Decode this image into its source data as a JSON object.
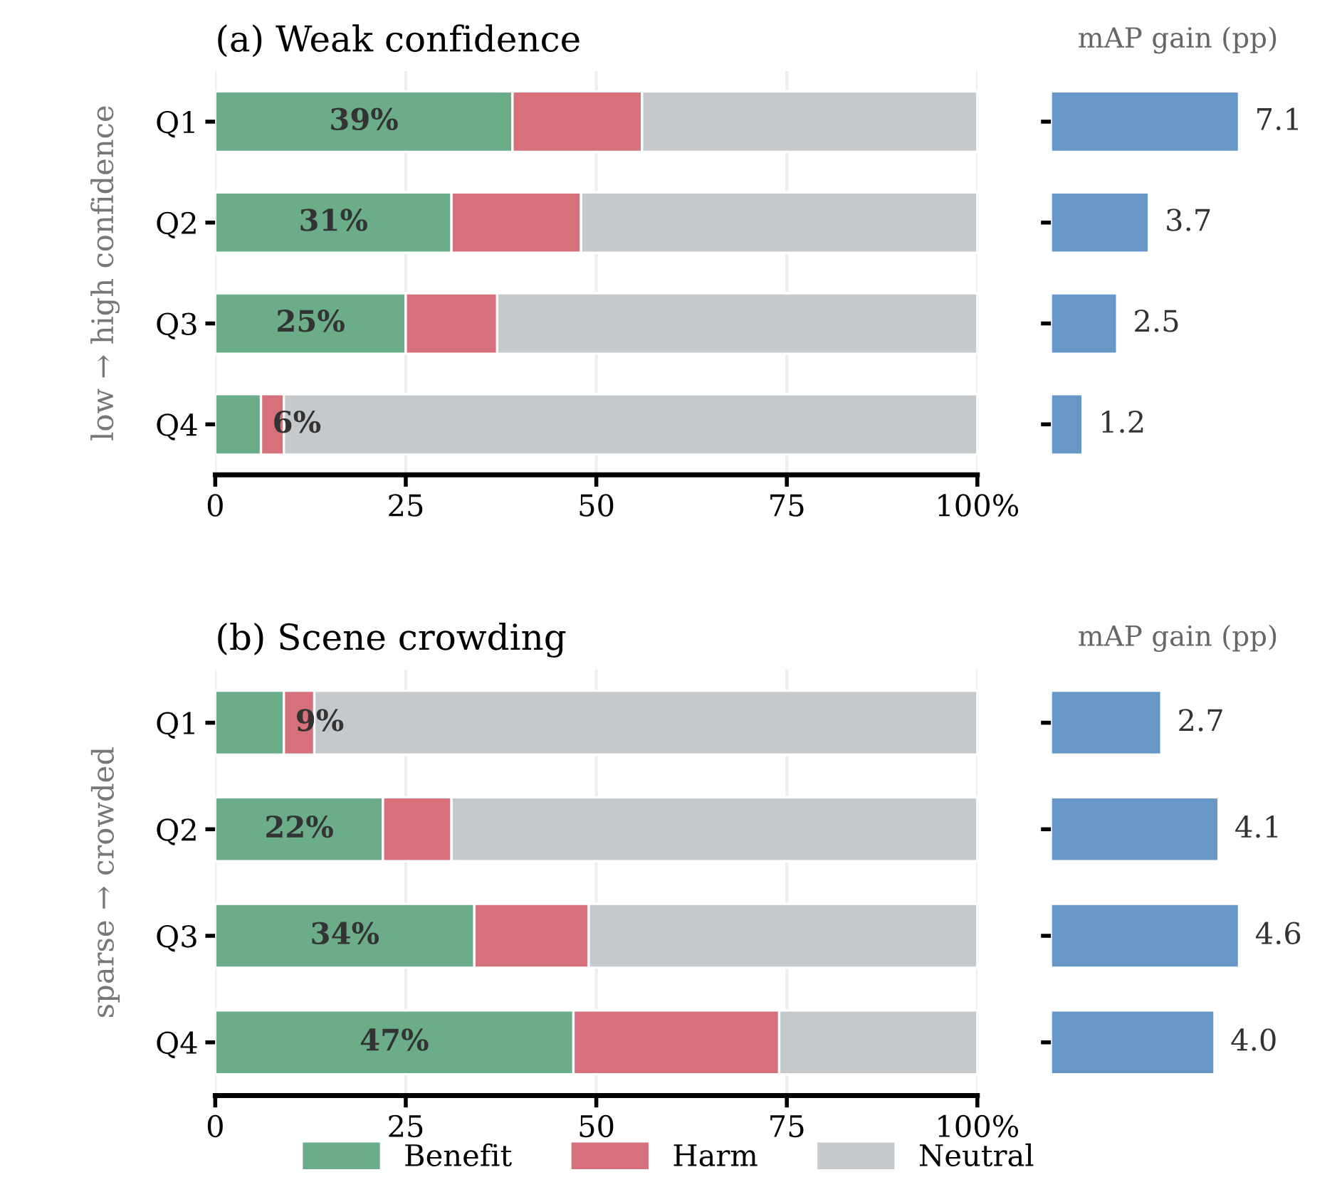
{
  "chart_data": [
    {
      "type": "bar",
      "orientation": "horizontal",
      "stacked": true,
      "title": "(a) Weak confidence",
      "ylabel": "low → high confidence",
      "categories": [
        "Q1",
        "Q2",
        "Q3",
        "Q4"
      ],
      "series": [
        {
          "name": "Benefit",
          "color": "#6aad88",
          "values": [
            39,
            31,
            25,
            6
          ],
          "value_labels": [
            "39%",
            "31%",
            "25%",
            "6%"
          ]
        },
        {
          "name": "Harm",
          "color": "#d6707a",
          "values": [
            17,
            17,
            12,
            3
          ]
        },
        {
          "name": "Neutral",
          "color": "#c6c9cc",
          "values": [
            44,
            52,
            63,
            91
          ]
        }
      ],
      "xlim": [
        0,
        100
      ],
      "xticks": [
        0,
        25,
        50,
        75,
        {
          "value": 100,
          "label": "100%"
        }
      ],
      "grid": "x",
      "legend": "bottom"
    },
    {
      "type": "bar",
      "orientation": "horizontal",
      "title": "mAP gain (pp)",
      "categories": [
        null,
        null,
        null,
        null
      ],
      "values": [
        7.1,
        3.7,
        2.5,
        1.2
      ],
      "value_labels": [
        "7.1",
        "3.7",
        "2.5",
        "1.2"
      ],
      "color": "#6797c6"
    },
    {
      "type": "bar",
      "orientation": "horizontal",
      "stacked": true,
      "title": "(b) Scene crowding",
      "ylabel": "sparse → crowded",
      "categories": [
        "Q1",
        "Q2",
        "Q3",
        "Q4"
      ],
      "series": [
        {
          "color": "#6aad88",
          "values": [
            9,
            22,
            34,
            47
          ],
          "value_labels": [
            "9%",
            "22%",
            "34%",
            "47%"
          ]
        },
        {
          "color": "#d6707a",
          "values": [
            4,
            9,
            15,
            27
          ]
        },
        {
          "color": "#c6c9cc",
          "values": [
            87,
            69,
            51,
            26
          ]
        }
      ],
      "xlim": [
        0,
        100
      ],
      "xticks": [
        0,
        25,
        50,
        75,
        {
          "value": 100,
          "label": "100%"
        }
      ],
      "grid": "x"
    },
    {
      "type": "bar",
      "orientation": "horizontal",
      "title": "mAP gain (pp)",
      "categories": [
        null,
        null,
        null,
        null
      ],
      "values": [
        2.7,
        4.1,
        4.6,
        4.0
      ],
      "value_labels": [
        "2.7",
        "4.1",
        "4.6",
        "4.0"
      ],
      "color": "#6797c6"
    }
  ]
}
